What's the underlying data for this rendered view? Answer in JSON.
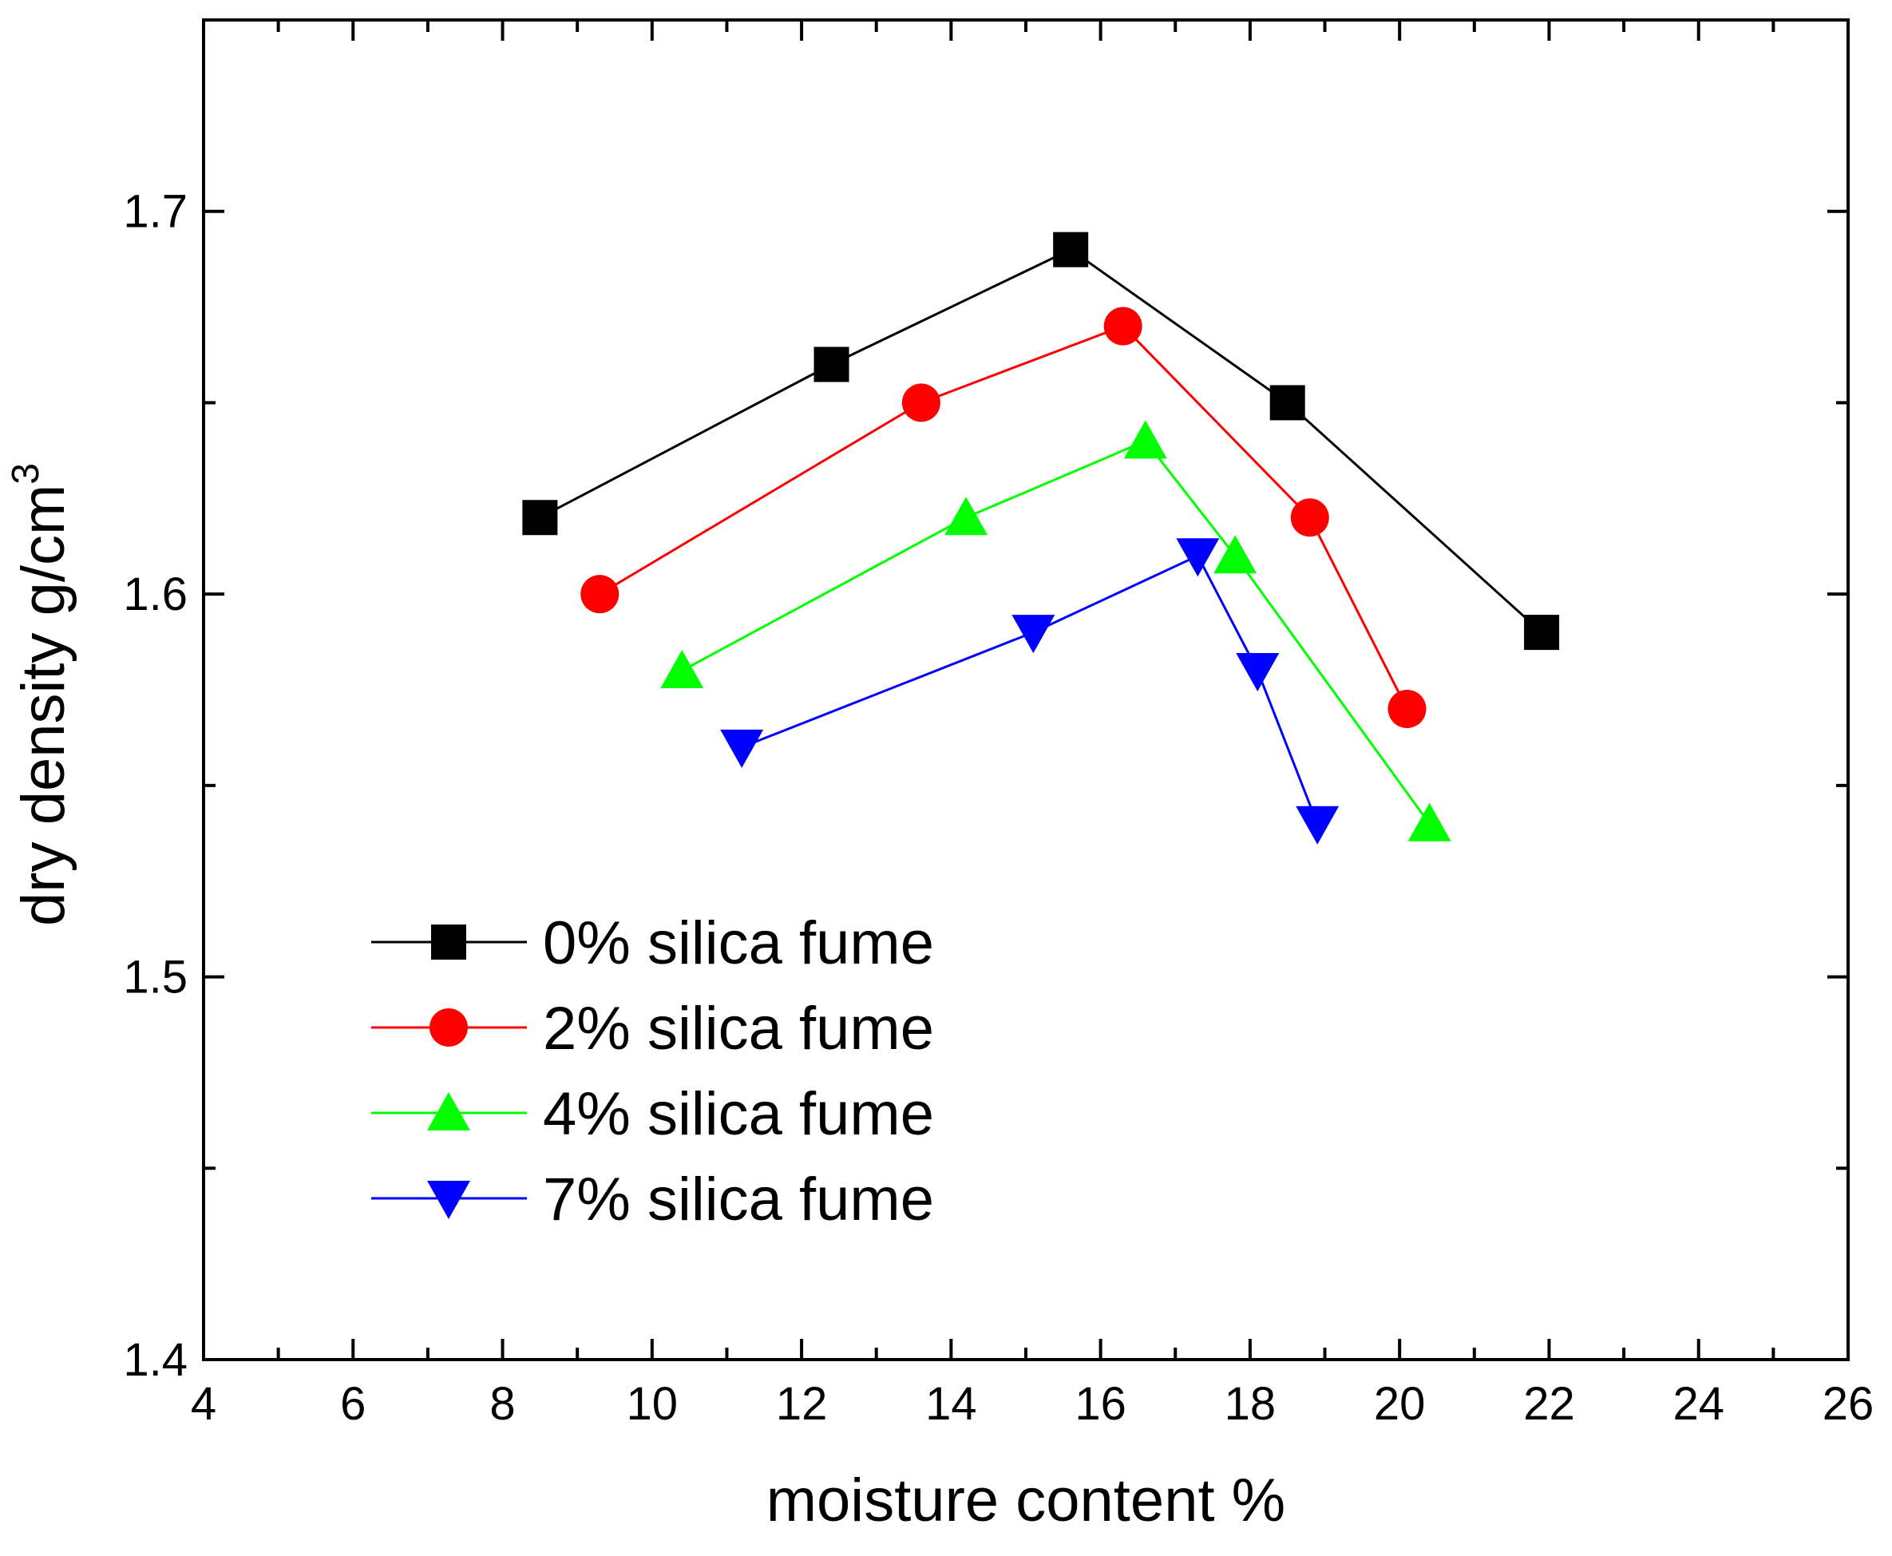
{
  "chart_data": {
    "type": "line",
    "title": "",
    "xlabel": "moisture content %",
    "ylabel": "dry density g/cm",
    "ylabel_superscript": "3",
    "xlim": [
      4,
      26
    ],
    "ylim": [
      1.4,
      1.75
    ],
    "x_ticks": [
      4,
      6,
      8,
      10,
      12,
      14,
      16,
      18,
      20,
      22,
      24,
      26
    ],
    "x_tick_labels": [
      "4",
      "6",
      "8",
      "10",
      "12",
      "14",
      "16",
      "18",
      "20",
      "22",
      "24",
      "26"
    ],
    "y_ticks": [
      1.4,
      1.5,
      1.6,
      1.7
    ],
    "y_tick_labels": [
      "1.4",
      "1.5",
      "1.6",
      "1.7"
    ],
    "y_minor_ticks": [
      1.45,
      1.55,
      1.65
    ],
    "grid": false,
    "legend_position": "lower-left",
    "series": [
      {
        "name": "0% silica fume",
        "color": "#000000",
        "marker": "square",
        "x": [
          8.5,
          12.4,
          15.6,
          18.5,
          21.9
        ],
        "y": [
          1.62,
          1.66,
          1.69,
          1.65,
          1.59
        ]
      },
      {
        "name": "2% silica fume",
        "color": "#ff0000",
        "marker": "circle",
        "x": [
          9.3,
          13.6,
          16.3,
          18.8,
          20.1
        ],
        "y": [
          1.6,
          1.65,
          1.67,
          1.62,
          1.57
        ]
      },
      {
        "name": "4% silica fume",
        "color": "#00ff00",
        "marker": "triangle-up",
        "x": [
          10.4,
          14.2,
          16.6,
          17.8,
          20.4
        ],
        "y": [
          1.58,
          1.62,
          1.64,
          1.61,
          1.54
        ]
      },
      {
        "name": "7% silica fume",
        "color": "#0000ff",
        "marker": "triangle-down",
        "x": [
          11.2,
          15.1,
          17.3,
          18.1,
          18.9
        ],
        "y": [
          1.56,
          1.59,
          1.61,
          1.58,
          1.54
        ]
      }
    ]
  }
}
